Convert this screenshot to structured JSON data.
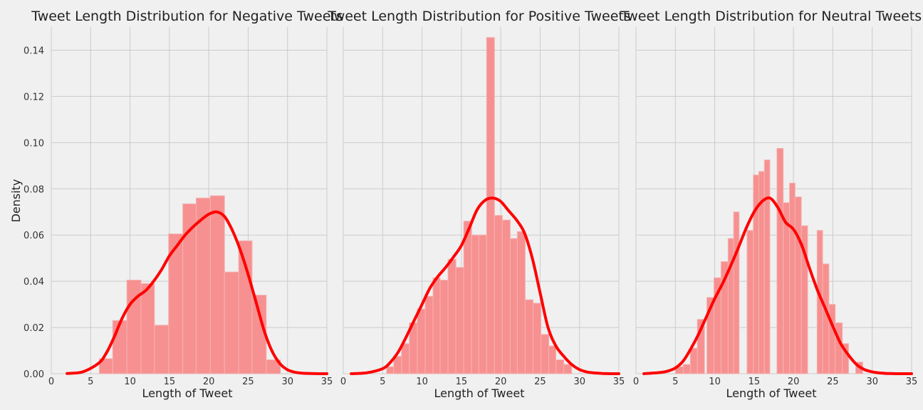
{
  "chart_data": [
    {
      "type": "histogram",
      "title": "Tweet Length Distribution for Negative Tweets",
      "xlabel": "Length of Tweet",
      "ylabel": "Density",
      "xlim": [
        0,
        35
      ],
      "ylim": [
        0,
        0.15
      ],
      "xticks": [
        0,
        5,
        10,
        15,
        20,
        25,
        30,
        35
      ],
      "yticks": [
        0.0,
        0.02,
        0.04,
        0.06,
        0.08,
        0.1,
        0.12,
        0.14
      ],
      "grid": true,
      "bars": [
        {
          "x0": 6.1,
          "x1": 7.8,
          "value": 0.0065
        },
        {
          "x0": 7.8,
          "x1": 9.6,
          "value": 0.023
        },
        {
          "x0": 9.6,
          "x1": 11.4,
          "value": 0.0405
        },
        {
          "x0": 11.4,
          "x1": 13.1,
          "value": 0.039
        },
        {
          "x0": 13.1,
          "x1": 14.9,
          "value": 0.021
        },
        {
          "x0": 14.9,
          "x1": 16.7,
          "value": 0.0605
        },
        {
          "x0": 16.7,
          "x1": 18.4,
          "value": 0.0735
        },
        {
          "x0": 18.4,
          "x1": 20.2,
          "value": 0.076
        },
        {
          "x0": 20.2,
          "x1": 22.0,
          "value": 0.077
        },
        {
          "x0": 22.0,
          "x1": 23.8,
          "value": 0.044
        },
        {
          "x0": 23.8,
          "x1": 25.5,
          "value": 0.0575
        },
        {
          "x0": 25.5,
          "x1": 27.3,
          "value": 0.034
        },
        {
          "x0": 27.3,
          "x1": 29.1,
          "value": 0.006
        }
      ],
      "kde": {
        "x": [
          2,
          4,
          6,
          7,
          8,
          9,
          10,
          11,
          12,
          13,
          14,
          15,
          16,
          17,
          18,
          19,
          20,
          21,
          22,
          23,
          24,
          25,
          26,
          27,
          28,
          29,
          30,
          31,
          32,
          33,
          34,
          35
        ],
        "y": [
          0.0001,
          0.0008,
          0.0045,
          0.009,
          0.016,
          0.024,
          0.03,
          0.0335,
          0.036,
          0.04,
          0.045,
          0.051,
          0.0555,
          0.06,
          0.0635,
          0.0665,
          0.069,
          0.07,
          0.068,
          0.062,
          0.0535,
          0.043,
          0.031,
          0.019,
          0.01,
          0.0045,
          0.0017,
          0.0006,
          0.0002,
          0.0001,
          0.0,
          0.0
        ]
      }
    },
    {
      "type": "histogram",
      "title": "Tweet Length Distribution for Positive Tweets",
      "xlabel": "Length of Tweet",
      "ylabel": "",
      "xlim": [
        0,
        35
      ],
      "ylim": [
        0,
        0.15
      ],
      "xticks": [
        0,
        5,
        10,
        15,
        20,
        25,
        30,
        35
      ],
      "grid": true,
      "bars": [
        {
          "x0": 5.5,
          "x1": 6.4,
          "value": 0.003
        },
        {
          "x0": 6.4,
          "x1": 7.4,
          "value": 0.0075
        },
        {
          "x0": 7.4,
          "x1": 8.4,
          "value": 0.013
        },
        {
          "x0": 8.4,
          "x1": 9.4,
          "value": 0.022
        },
        {
          "x0": 9.4,
          "x1": 10.4,
          "value": 0.028
        },
        {
          "x0": 10.4,
          "x1": 11.4,
          "value": 0.0335
        },
        {
          "x0": 11.4,
          "x1": 12.3,
          "value": 0.0415
        },
        {
          "x0": 12.3,
          "x1": 13.3,
          "value": 0.0405
        },
        {
          "x0": 13.3,
          "x1": 14.3,
          "value": 0.0495
        },
        {
          "x0": 14.3,
          "x1": 15.3,
          "value": 0.046
        },
        {
          "x0": 15.3,
          "x1": 16.3,
          "value": 0.066
        },
        {
          "x0": 16.3,
          "x1": 17.2,
          "value": 0.06
        },
        {
          "x0": 17.2,
          "x1": 18.2,
          "value": 0.06
        },
        {
          "x0": 18.2,
          "x1": 19.2,
          "value": 0.1455
        },
        {
          "x0": 19.2,
          "x1": 20.2,
          "value": 0.0685
        },
        {
          "x0": 20.2,
          "x1": 21.2,
          "value": 0.0665
        },
        {
          "x0": 21.2,
          "x1": 22.1,
          "value": 0.0585
        },
        {
          "x0": 22.1,
          "x1": 23.1,
          "value": 0.0615
        },
        {
          "x0": 23.1,
          "x1": 24.1,
          "value": 0.032
        },
        {
          "x0": 24.1,
          "x1": 25.1,
          "value": 0.0305
        },
        {
          "x0": 25.1,
          "x1": 26.1,
          "value": 0.017
        },
        {
          "x0": 26.1,
          "x1": 27.0,
          "value": 0.012
        },
        {
          "x0": 27.0,
          "x1": 28.0,
          "value": 0.006
        },
        {
          "x0": 28.0,
          "x1": 29.0,
          "value": 0.004
        }
      ],
      "kde": {
        "x": [
          1,
          3,
          5,
          6,
          7,
          8,
          9,
          10,
          11,
          12,
          13,
          14,
          15,
          16,
          17,
          18,
          19,
          20,
          21,
          22,
          23,
          24,
          25,
          26,
          27,
          28,
          29,
          30,
          31,
          32,
          33,
          34,
          35
        ],
        "y": [
          0.0,
          0.0004,
          0.0022,
          0.005,
          0.0095,
          0.016,
          0.023,
          0.03,
          0.037,
          0.042,
          0.046,
          0.0505,
          0.0555,
          0.063,
          0.071,
          0.075,
          0.076,
          0.0745,
          0.0705,
          0.0665,
          0.061,
          0.05,
          0.035,
          0.02,
          0.012,
          0.0075,
          0.004,
          0.0018,
          0.0007,
          0.0003,
          0.0001,
          0.0,
          0.0
        ]
      }
    },
    {
      "type": "histogram",
      "title": "Tweet Length Distribution for Neutral Tweets",
      "xlabel": "Length of Tweet",
      "ylabel": "",
      "xlim": [
        0,
        35
      ],
      "ylim": [
        0,
        0.15
      ],
      "xticks": [
        0,
        5,
        10,
        15,
        20,
        25,
        30,
        35
      ],
      "grid": true,
      "bars": [
        {
          "x0": 5.0,
          "x1": 6.0,
          "value": 0.003
        },
        {
          "x0": 6.0,
          "x1": 6.9,
          "value": 0.004
        },
        {
          "x0": 6.9,
          "x1": 7.8,
          "value": 0.011
        },
        {
          "x0": 7.8,
          "x1": 8.7,
          "value": 0.0235
        },
        {
          "x0": 9.0,
          "x1": 9.9,
          "value": 0.033
        },
        {
          "x0": 9.9,
          "x1": 10.8,
          "value": 0.0415
        },
        {
          "x0": 10.8,
          "x1": 11.7,
          "value": 0.0485
        },
        {
          "x0": 11.7,
          "x1": 12.4,
          "value": 0.0585
        },
        {
          "x0": 12.4,
          "x1": 13.1,
          "value": 0.07
        },
        {
          "x0": 14.1,
          "x1": 14.9,
          "value": 0.062
        },
        {
          "x0": 14.9,
          "x1": 15.6,
          "value": 0.086
        },
        {
          "x0": 15.6,
          "x1": 16.3,
          "value": 0.0875
        },
        {
          "x0": 16.3,
          "x1": 17.0,
          "value": 0.0925
        },
        {
          "x0": 17.9,
          "x1": 18.7,
          "value": 0.0975
        },
        {
          "x0": 18.7,
          "x1": 19.5,
          "value": 0.074
        },
        {
          "x0": 19.5,
          "x1": 20.2,
          "value": 0.0825
        },
        {
          "x0": 20.2,
          "x1": 21.0,
          "value": 0.0765
        },
        {
          "x0": 21.0,
          "x1": 21.8,
          "value": 0.064
        },
        {
          "x0": 23.0,
          "x1": 23.7,
          "value": 0.062
        },
        {
          "x0": 23.7,
          "x1": 24.5,
          "value": 0.0475
        },
        {
          "x0": 24.5,
          "x1": 25.3,
          "value": 0.03
        },
        {
          "x0": 25.3,
          "x1": 26.2,
          "value": 0.022
        },
        {
          "x0": 26.2,
          "x1": 27.0,
          "value": 0.013
        },
        {
          "x0": 27.9,
          "x1": 28.8,
          "value": 0.005
        }
      ],
      "kde": {
        "x": [
          1,
          3,
          4,
          5,
          6,
          7,
          8,
          9,
          10,
          11,
          12,
          13,
          14,
          15,
          16,
          17,
          18,
          19,
          20,
          21,
          22,
          23,
          24,
          25,
          26,
          27,
          28,
          29,
          30,
          31,
          32,
          33,
          35
        ],
        "y": [
          0.0,
          0.0005,
          0.0011,
          0.0025,
          0.0055,
          0.011,
          0.0175,
          0.025,
          0.0325,
          0.039,
          0.0465,
          0.0545,
          0.063,
          0.07,
          0.0745,
          0.076,
          0.072,
          0.0655,
          0.0625,
          0.056,
          0.046,
          0.0365,
          0.0285,
          0.0205,
          0.013,
          0.008,
          0.004,
          0.0018,
          0.0008,
          0.0003,
          0.0001,
          0.0,
          0.0
        ]
      }
    }
  ]
}
